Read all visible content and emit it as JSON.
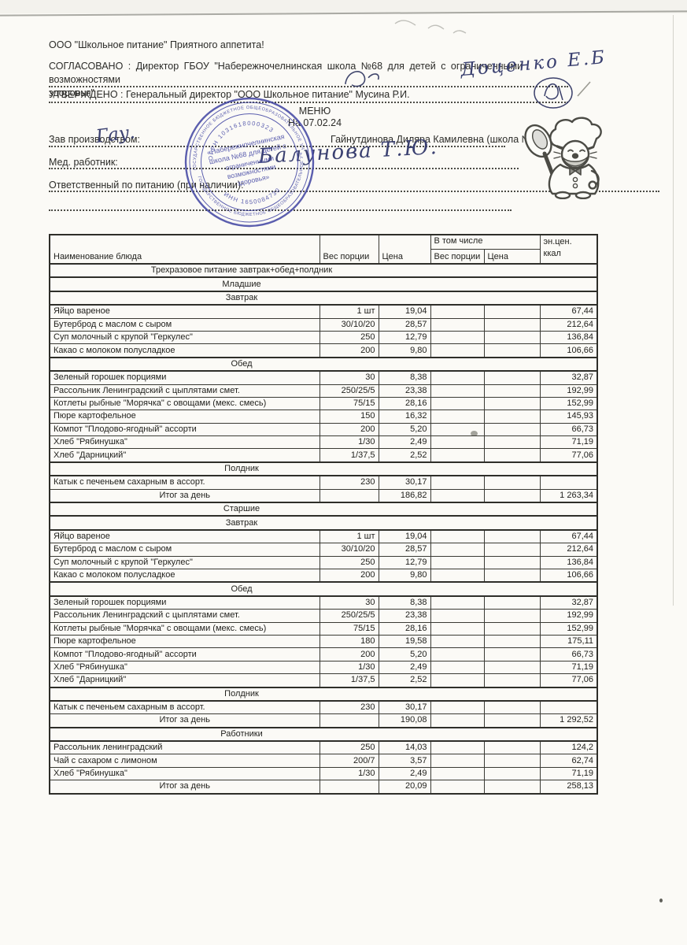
{
  "document": {
    "company_line": "ООО \"Школьное питание\" Приятного аппетита!",
    "agreed_line_1": "СОГЛАСОВАНО : Директор ГБОУ \"Набережночелнинская школа №68 для детей с ограниченными возможностями",
    "agreed_line_2": "здоровья\"",
    "approved_line": "УТВЕРЖДЕНО : Генеральный директор \"ООО Школьное питание\" Мусина Р.И.",
    "menu_title": "МЕНЮ",
    "menu_date": "На 07.02.24",
    "fields": {
      "production_manager_label": "Зав производством:",
      "production_manager_value": "Гайнутдинова Диляра Камилевна (школа №6",
      "medical_worker_label": "Мед. работник:",
      "nutrition_responsible_label": "Ответственный по питанию (при наличии):"
    },
    "handwriting": {
      "agreed_signature": "Доценко Е.Б",
      "production_manager_signature": "Гау.",
      "medical_worker_signature": "Балунова Т.Ю."
    },
    "stamp": {
      "color": "#4549a5",
      "ring_text": "ГОСУДАРСТВЕННОЕ БЮДЖЕТНОЕ ОБЩЕОБРАЗОВАТЕЛЬНОЕ УЧРЕЖДЕНИЕ",
      "ogrn": "ОГРН 1031618000323",
      "inn": "ИНН 1650084730",
      "center_lines": [
        "«Набережночелнинская",
        "школа №68 для детей с",
        "ограниченными",
        "возможностями",
        "здоровья»"
      ]
    }
  },
  "table": {
    "headers": {
      "dish": "Наименование блюда",
      "portion": "Вес порции",
      "price": "Цена",
      "including": "В том числе",
      "incl_portion": "Вес порции",
      "incl_price": "Цена",
      "energy_line1": "эн.цен.",
      "energy_line2": "ккал"
    },
    "rows": [
      {
        "type": "section",
        "text": "Трехразовое питание завтрак+обед+полдник"
      },
      {
        "type": "section",
        "text": "Младшие"
      },
      {
        "type": "section",
        "text": "Завтрак"
      },
      {
        "type": "item",
        "name": "Яйцо вареное",
        "portion": "1 шт",
        "price": "19,04",
        "incl_portion": "",
        "incl_price": "",
        "kcal": "67,44"
      },
      {
        "type": "item",
        "name": "Бутерброд с маслом с сыром",
        "portion": "30/10/20",
        "price": "28,57",
        "incl_portion": "",
        "incl_price": "",
        "kcal": "212,64"
      },
      {
        "type": "item",
        "name": "Суп молочный с крупой \"Геркулес\"",
        "portion": "250",
        "price": "12,79",
        "incl_portion": "",
        "incl_price": "",
        "kcal": "136,84"
      },
      {
        "type": "item",
        "name": "Какао с молоком полусладкое",
        "portion": "200",
        "price": "9,80",
        "incl_portion": "",
        "incl_price": "",
        "kcal": "106,66"
      },
      {
        "type": "section",
        "text": "Обед"
      },
      {
        "type": "item",
        "name": "Зеленый горошек порциями",
        "portion": "30",
        "price": "8,38",
        "incl_portion": "",
        "incl_price": "",
        "kcal": "32,87"
      },
      {
        "type": "item",
        "name": "Рассольник Ленинградский с цыплятами смет.",
        "portion": "250/25/5",
        "price": "23,38",
        "incl_portion": "",
        "incl_price": "",
        "kcal": "192,99"
      },
      {
        "type": "item",
        "name": "Котлеты рыбные \"Морячка\"  с овощами (мекс. смесь)",
        "portion": "75/15",
        "price": "28,16",
        "incl_portion": "",
        "incl_price": "",
        "kcal": "152,99"
      },
      {
        "type": "item",
        "name": "Пюре картофельное",
        "portion": "150",
        "price": "16,32",
        "incl_portion": "",
        "incl_price": "",
        "kcal": "145,93"
      },
      {
        "type": "item",
        "name": "Компот \"Плодово-ягодный\" ассорти",
        "portion": "200",
        "price": "5,20",
        "incl_portion": "",
        "incl_price": "",
        "kcal": "66,73"
      },
      {
        "type": "item",
        "name": "Хлеб \"Рябинушка\"",
        "portion": "1/30",
        "price": "2,49",
        "incl_portion": "",
        "incl_price": "",
        "kcal": "71,19"
      },
      {
        "type": "item",
        "name": "Хлеб \"Дарницкий\"",
        "portion": "1/37,5",
        "price": "2,52",
        "incl_portion": "",
        "incl_price": "",
        "kcal": "77,06"
      },
      {
        "type": "section",
        "text": "Полдник"
      },
      {
        "type": "item",
        "name": "Катык с печеньем сахарным в ассорт.",
        "portion": "230",
        "price": "30,17",
        "incl_portion": "",
        "incl_price": "",
        "kcal": ""
      },
      {
        "type": "total",
        "label": "Итог за день",
        "price": "186,82",
        "kcal": "1 263,34"
      },
      {
        "type": "section",
        "text": "Старшие"
      },
      {
        "type": "section",
        "text": "Завтрак"
      },
      {
        "type": "item",
        "name": "Яйцо вареное",
        "portion": "1 шт",
        "price": "19,04",
        "incl_portion": "",
        "incl_price": "",
        "kcal": "67,44"
      },
      {
        "type": "item",
        "name": "Бутерброд с маслом с сыром",
        "portion": "30/10/20",
        "price": "28,57",
        "incl_portion": "",
        "incl_price": "",
        "kcal": "212,64"
      },
      {
        "type": "item",
        "name": "Суп молочный с крупой \"Геркулес\"",
        "portion": "250",
        "price": "12,79",
        "incl_portion": "",
        "incl_price": "",
        "kcal": "136,84"
      },
      {
        "type": "item",
        "name": "Какао с молоком полусладкое",
        "portion": "200",
        "price": "9,80",
        "incl_portion": "",
        "incl_price": "",
        "kcal": "106,66"
      },
      {
        "type": "section",
        "text": "Обед"
      },
      {
        "type": "item",
        "name": "Зеленый горошек порциями",
        "portion": "30",
        "price": "8,38",
        "incl_portion": "",
        "incl_price": "",
        "kcal": "32,87"
      },
      {
        "type": "item",
        "name": "Рассольник Ленинградский с цыплятами смет.",
        "portion": "250/25/5",
        "price": "23,38",
        "incl_portion": "",
        "incl_price": "",
        "kcal": "192,99"
      },
      {
        "type": "item",
        "name": "Котлеты рыбные \"Морячка\"  с овощами (мекс. смесь)",
        "portion": "75/15",
        "price": "28,16",
        "incl_portion": "",
        "incl_price": "",
        "kcal": "152,99"
      },
      {
        "type": "item",
        "name": "Пюре картофельное",
        "portion": "180",
        "price": "19,58",
        "incl_portion": "",
        "incl_price": "",
        "kcal": "175,11"
      },
      {
        "type": "item",
        "name": "Компот \"Плодово-ягодный\" ассорти",
        "portion": "200",
        "price": "5,20",
        "incl_portion": "",
        "incl_price": "",
        "kcal": "66,73"
      },
      {
        "type": "item",
        "name": "Хлеб \"Рябинушка\"",
        "portion": "1/30",
        "price": "2,49",
        "incl_portion": "",
        "incl_price": "",
        "kcal": "71,19"
      },
      {
        "type": "item",
        "name": "Хлеб \"Дарницкий\"",
        "portion": "1/37,5",
        "price": "2,52",
        "incl_portion": "",
        "incl_price": "",
        "kcal": "77,06"
      },
      {
        "type": "section",
        "text": "Полдник"
      },
      {
        "type": "item",
        "name": "Катык с печеньем сахарным в ассорт.",
        "portion": "230",
        "price": "30,17",
        "incl_portion": "",
        "incl_price": "",
        "kcal": ""
      },
      {
        "type": "total",
        "label": "Итог за день",
        "price": "190,08",
        "kcal": "1 292,52"
      },
      {
        "type": "section",
        "text": "Работники"
      },
      {
        "type": "item",
        "name": "Рассольник ленинградский",
        "portion": "250",
        "price": "14,03",
        "incl_portion": "",
        "incl_price": "",
        "kcal": "124,2"
      },
      {
        "type": "item",
        "name": "Чай с сахаром с лимоном",
        "portion": "200/7",
        "price": "3,57",
        "incl_portion": "",
        "incl_price": "",
        "kcal": "62,74"
      },
      {
        "type": "item",
        "name": "Хлеб \"Рябинушка\"",
        "portion": "1/30",
        "price": "2,49",
        "incl_portion": "",
        "incl_price": "",
        "kcal": "71,19"
      },
      {
        "type": "total",
        "label": "Итог за день",
        "price": "20,09",
        "kcal": "258,13"
      }
    ]
  }
}
